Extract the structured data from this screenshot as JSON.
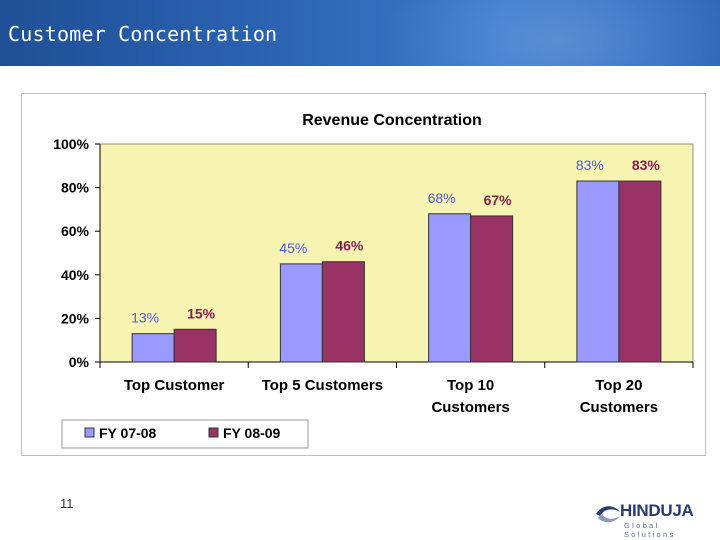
{
  "slide": {
    "title": "Customer Concentration",
    "number": "11"
  },
  "logo": {
    "name": "HINDUJA",
    "tagline": "Global Solutions"
  },
  "colors": {
    "header": "#2b62b0",
    "plot_bg": "#f7f3b0",
    "series1": "#9999ff",
    "series2": "#993366",
    "label1": "#4d57d9",
    "label2": "#80224e"
  },
  "chart_data": {
    "type": "bar",
    "title": "Revenue Concentration",
    "categories": [
      [
        "Top Customer"
      ],
      [
        "Top 5 Customers"
      ],
      [
        "Top 10",
        "Customers"
      ],
      [
        "Top 20",
        "Customers"
      ]
    ],
    "series": [
      {
        "name": "FY 07-08",
        "values": [
          13,
          45,
          68,
          83
        ],
        "labels": [
          "13%",
          "45%",
          "68%",
          "83%"
        ]
      },
      {
        "name": "FY 08-09",
        "values": [
          15,
          46,
          67,
          83
        ],
        "labels": [
          "15%",
          "46%",
          "67%",
          "83%"
        ]
      }
    ],
    "ylim": [
      0,
      100
    ],
    "yticks": [
      "0%",
      "20%",
      "40%",
      "60%",
      "80%",
      "100%"
    ],
    "xlabel": "",
    "ylabel": "",
    "grid": false,
    "legend": "bottom-left"
  }
}
